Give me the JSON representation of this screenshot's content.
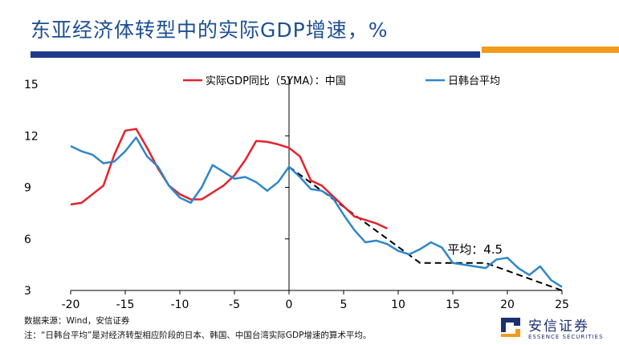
{
  "title": "东亚经济体转型中的实际GDP增速，%",
  "footer": {
    "source": "数据来源：Wind，安信证券",
    "note": "注：“日韩台平均”是对经济转型相应阶段的日本、韩国、中国台湾实际GDP增速的算术平均。"
  },
  "logo": {
    "name_cn": "安信证券",
    "name_en": "ESSENCE SECURITIES"
  },
  "colors": {
    "title": "#1d4f91",
    "bar_blue": "#1f3a8a",
    "bar_orange": "#f29a1b",
    "china": "#e3232c",
    "avg": "#2f86c8",
    "trend": "#000000"
  },
  "chart_data": {
    "type": "line",
    "title": "",
    "xlabel": "",
    "ylabel": "",
    "xlim": [
      -20,
      25
    ],
    "ylim": [
      3,
      15
    ],
    "xticks": [
      -20,
      -15,
      -10,
      -5,
      0,
      5,
      10,
      15,
      20,
      25
    ],
    "yticks": [
      3,
      6,
      9,
      12,
      15
    ],
    "legend_position": "top",
    "grid": false,
    "series": [
      {
        "name": "实际GDP同比（5YMA）：中国",
        "color": "#e3232c",
        "x": [
          -20,
          -19,
          -18,
          -17,
          -16,
          -15,
          -14,
          -13,
          -12,
          -11,
          -10,
          -9,
          -8,
          -7,
          -6,
          -5,
          -4,
          -3,
          -2,
          -1,
          0,
          1,
          2,
          3,
          4,
          5,
          6,
          7,
          8,
          9
        ],
        "y": [
          8.0,
          8.1,
          8.6,
          9.1,
          10.9,
          12.3,
          12.4,
          11.3,
          10.1,
          9.1,
          8.6,
          8.3,
          8.3,
          8.7,
          9.1,
          9.7,
          10.6,
          11.7,
          11.65,
          11.5,
          11.3,
          10.8,
          9.4,
          9.1,
          8.5,
          7.9,
          7.3,
          7.1,
          6.9,
          6.6
        ]
      },
      {
        "name": "日韩台平均",
        "color": "#2f86c8",
        "x": [
          -20,
          -19,
          -18,
          -17,
          -16,
          -15,
          -14,
          -13,
          -12,
          -11,
          -10,
          -9,
          -8,
          -7,
          -6,
          -5,
          -4,
          -3,
          -2,
          -1,
          0,
          1,
          2,
          3,
          4,
          5,
          6,
          7,
          8,
          9,
          10,
          11,
          12,
          13,
          14,
          15,
          16,
          17,
          18,
          19,
          20,
          21,
          22,
          23,
          24,
          25
        ],
        "y": [
          11.4,
          11.1,
          10.9,
          10.4,
          10.5,
          11.1,
          11.9,
          10.8,
          10.2,
          9.1,
          8.4,
          8.1,
          9.0,
          10.3,
          9.9,
          9.5,
          9.6,
          9.3,
          8.8,
          9.3,
          10.2,
          9.6,
          8.9,
          8.8,
          8.4,
          7.4,
          6.5,
          5.8,
          5.9,
          5.7,
          5.3,
          5.1,
          5.4,
          5.8,
          5.5,
          4.6,
          4.5,
          4.4,
          4.3,
          4.8,
          4.9,
          4.3,
          3.9,
          4.4,
          3.6,
          3.2
        ]
      }
    ],
    "trend_lines": [
      {
        "x": [
          0,
          12,
          18,
          25
        ],
        "y": [
          10.2,
          4.6,
          4.6,
          3.0
        ]
      }
    ],
    "annotations": [
      {
        "text": "平均：4.5",
        "x": 14.5,
        "y": 5.15
      }
    ]
  }
}
